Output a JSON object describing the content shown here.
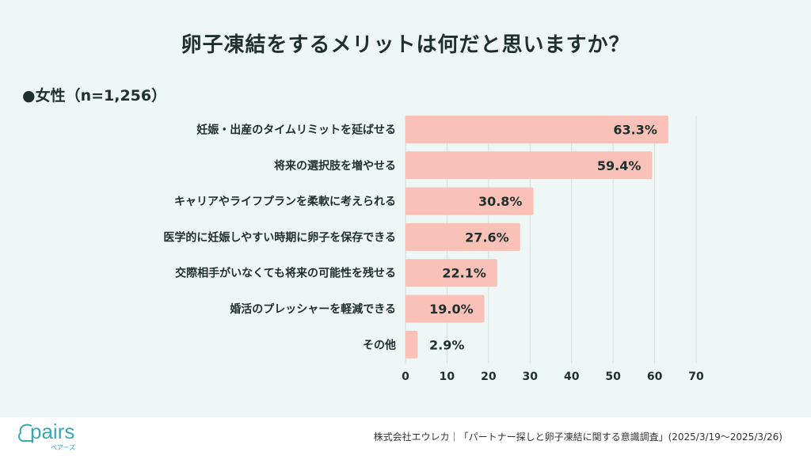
{
  "chart_data": {
    "type": "bar",
    "orientation": "horizontal",
    "title": "卵子凍結をするメリットは何だと思いますか？",
    "subtitle": "●女性（n=1,256）",
    "categories": [
      "妊娠・出産のタイムリミットを延ばせる",
      "将来の選択肢を増やせる",
      "キャリアやライフプランを柔軟に考えられる",
      "医学的に妊娠しやすい時期に卵子を保存できる",
      "交際相手がいなくても将来の可能性を残せる",
      "婚活のプレッシャーを軽減できる",
      "その他"
    ],
    "values": [
      63.3,
      59.4,
      30.8,
      27.6,
      22.1,
      19.0,
      2.9
    ],
    "data_labels": [
      "63.3%",
      "59.4%",
      "30.8%",
      "27.6%",
      "22.1%",
      "19.0%",
      "2.9%"
    ],
    "xlim": [
      0,
      70
    ],
    "xticks": [
      "0",
      "10",
      "20",
      "30",
      "40",
      "50",
      "60",
      "70"
    ],
    "grid": true,
    "bar_color": "#f9c1b8",
    "background_color": "#eff7f6"
  },
  "footer": {
    "logo_text": "pairs",
    "logo_kana": "ペアーズ",
    "source": "株式会社エウレカ｜「パートナー探しと卵子凍結に関する意識調査」(2025/3/19〜2025/3/26)"
  }
}
